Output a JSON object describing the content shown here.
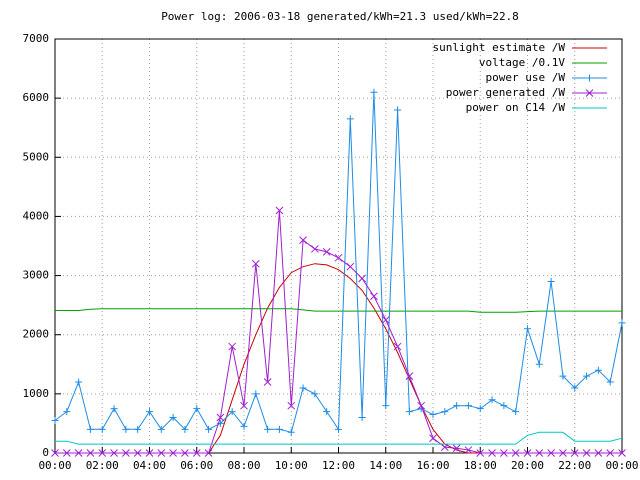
{
  "chart_data": {
    "type": "line",
    "title": "Power log: 2006-03-18 generated/kWh=21.3 used/kWh=22.8",
    "x": [
      0,
      0.5,
      1,
      1.5,
      2,
      2.5,
      3,
      3.5,
      4,
      4.5,
      5,
      5.5,
      6,
      6.5,
      7,
      7.5,
      8,
      8.5,
      9,
      9.5,
      10,
      10.5,
      11,
      11.5,
      12,
      12.5,
      13,
      13.5,
      14,
      14.5,
      15,
      15.5,
      16,
      16.5,
      17,
      17.5,
      18,
      18.5,
      19,
      19.5,
      20,
      20.5,
      21,
      21.5,
      22,
      22.5,
      23,
      23.5,
      24
    ],
    "series": [
      {
        "name": "sunlight estimate /W",
        "color": "#cc0000",
        "marker": "none",
        "values": [
          0,
          0,
          0,
          0,
          0,
          0,
          0,
          0,
          0,
          0,
          0,
          0,
          0,
          0,
          300,
          900,
          1500,
          2000,
          2450,
          2800,
          3050,
          3150,
          3200,
          3180,
          3100,
          2950,
          2750,
          2450,
          2100,
          1700,
          1250,
          800,
          400,
          150,
          50,
          0,
          0,
          0,
          0,
          0,
          0,
          0,
          0,
          0,
          0,
          0,
          0,
          0,
          0
        ]
      },
      {
        "name": "voltage /0.1V",
        "color": "#00a000",
        "marker": "none",
        "values": [
          2410,
          2410,
          2410,
          2430,
          2440,
          2440,
          2440,
          2440,
          2440,
          2440,
          2440,
          2440,
          2440,
          2440,
          2440,
          2440,
          2440,
          2440,
          2440,
          2440,
          2440,
          2420,
          2400,
          2400,
          2400,
          2400,
          2400,
          2400,
          2400,
          2400,
          2400,
          2400,
          2400,
          2400,
          2400,
          2400,
          2380,
          2380,
          2380,
          2380,
          2390,
          2400,
          2400,
          2400,
          2400,
          2400,
          2400,
          2400,
          2400
        ]
      },
      {
        "name": "power use /W",
        "color": "#1e8ce6",
        "marker": "plus",
        "values": [
          550,
          700,
          1200,
          400,
          400,
          750,
          400,
          400,
          700,
          400,
          600,
          400,
          750,
          400,
          500,
          700,
          450,
          1000,
          400,
          400,
          350,
          1100,
          1000,
          700,
          400,
          5650,
          600,
          6100,
          800,
          5800,
          700,
          750,
          650,
          700,
          800,
          800,
          750,
          900,
          800,
          700,
          2100,
          1500,
          2900,
          1300,
          1100,
          1300,
          1400,
          1200,
          2200
        ]
      },
      {
        "name": "power generated /W",
        "color": "#a020d0",
        "marker": "cross",
        "values": [
          0,
          0,
          0,
          0,
          0,
          0,
          0,
          0,
          0,
          0,
          0,
          0,
          0,
          0,
          600,
          1800,
          800,
          3200,
          1200,
          4100,
          800,
          3600,
          3450,
          3400,
          3300,
          3150,
          2950,
          2650,
          2250,
          1800,
          1300,
          800,
          250,
          100,
          80,
          50,
          0,
          0,
          0,
          0,
          0,
          0,
          0,
          0,
          0,
          0,
          0,
          0,
          0
        ]
      },
      {
        "name": "power on C14 /W",
        "color": "#00c8c8",
        "marker": "none",
        "values": [
          200,
          200,
          150,
          150,
          150,
          150,
          150,
          150,
          150,
          150,
          150,
          150,
          150,
          150,
          150,
          150,
          150,
          150,
          150,
          150,
          150,
          150,
          150,
          150,
          150,
          150,
          150,
          150,
          150,
          150,
          150,
          150,
          150,
          150,
          150,
          150,
          150,
          150,
          150,
          150,
          300,
          350,
          350,
          350,
          200,
          200,
          200,
          200,
          250
        ]
      }
    ],
    "xlim": [
      0,
      24
    ],
    "xticks": [
      {
        "value": 0,
        "label": "00:00"
      },
      {
        "value": 2,
        "label": "02:00"
      },
      {
        "value": 4,
        "label": "04:00"
      },
      {
        "value": 6,
        "label": "06:00"
      },
      {
        "value": 8,
        "label": "08:00"
      },
      {
        "value": 10,
        "label": "10:00"
      },
      {
        "value": 12,
        "label": "12:00"
      },
      {
        "value": 14,
        "label": "14:00"
      },
      {
        "value": 16,
        "label": "16:00"
      },
      {
        "value": 18,
        "label": "18:00"
      },
      {
        "value": 20,
        "label": "20:00"
      },
      {
        "value": 22,
        "label": "22:00"
      },
      {
        "value": 24,
        "label": "00:00"
      }
    ],
    "ylim": [
      0,
      7000
    ],
    "yticks": [
      0,
      1000,
      2000,
      3000,
      4000,
      5000,
      6000,
      7000
    ],
    "grid": true,
    "legend": "top-right"
  }
}
